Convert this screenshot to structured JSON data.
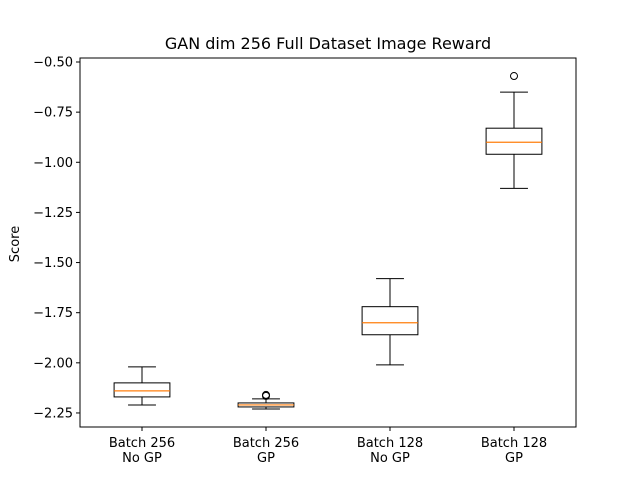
{
  "chart_data": {
    "type": "box",
    "title": "GAN dim 256 Full Dataset Image Reward",
    "xlabel": "",
    "ylabel": "Score",
    "ylim": [
      -2.32,
      -0.48
    ],
    "yticks": [
      -0.5,
      -0.75,
      -1.0,
      -1.25,
      -1.5,
      -1.75,
      -2.0,
      -2.25
    ],
    "ytick_labels": [
      "−0.50",
      "−0.75",
      "−1.00",
      "−1.25",
      "−1.50",
      "−1.75",
      "−2.00",
      "−2.25"
    ],
    "grid": false,
    "categories": [
      [
        "Batch 256",
        "No GP"
      ],
      [
        "Batch 256",
        "GP"
      ],
      [
        "Batch 128",
        "No GP"
      ],
      [
        "Batch 128",
        "GP"
      ]
    ],
    "boxes": [
      {
        "whisker_low": -2.21,
        "q1": -2.17,
        "median": -2.14,
        "q3": -2.1,
        "whisker_high": -2.02,
        "outliers": []
      },
      {
        "whisker_low": -2.23,
        "q1": -2.22,
        "median": -2.21,
        "q3": -2.2,
        "whisker_high": -2.18,
        "outliers": [
          -2.16,
          -2.165
        ]
      },
      {
        "whisker_low": -2.01,
        "q1": -1.86,
        "median": -1.8,
        "q3": -1.72,
        "whisker_high": -1.58,
        "outliers": []
      },
      {
        "whisker_low": -1.13,
        "q1": -0.96,
        "median": -0.9,
        "q3": -0.83,
        "whisker_high": -0.65,
        "outliers": [
          -0.57
        ]
      }
    ],
    "colors": {
      "box": "#000000",
      "median": "#ff7f0e",
      "axis": "#000000"
    }
  }
}
